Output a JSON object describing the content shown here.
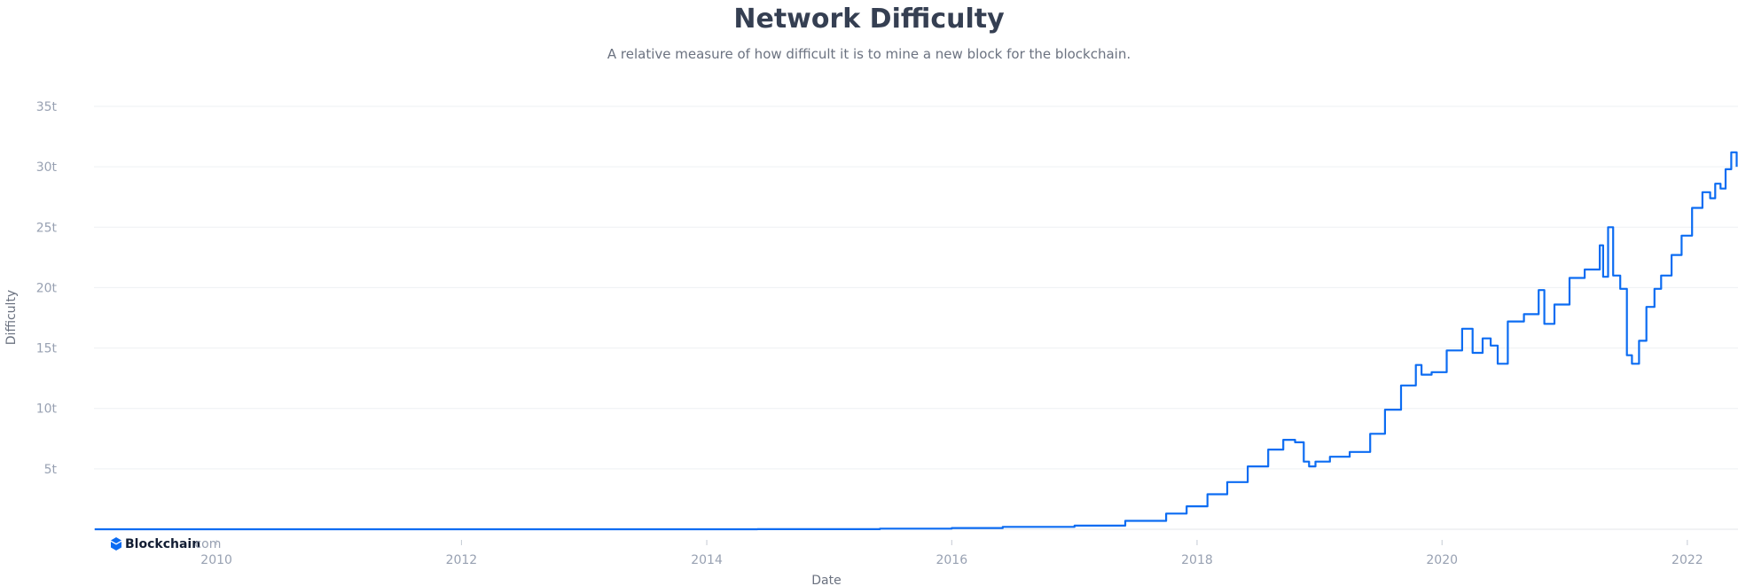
{
  "chart_data": {
    "type": "line",
    "title": "Network Difficulty",
    "subtitle": "A relative measure of how difficult it is to mine a new block for the blockchain.",
    "xlabel": "Date",
    "ylabel": "Difficulty",
    "xlim": [
      "2009-01-01",
      "2022-06-01"
    ],
    "ylim": [
      0,
      35
    ],
    "y_unit": "t",
    "x_ticks": [
      "2010",
      "2012",
      "2014",
      "2016",
      "2018",
      "2020",
      "2022"
    ],
    "y_ticks": [
      "5t",
      "10t",
      "15t",
      "20t",
      "25t",
      "30t",
      "35t"
    ],
    "grid": "horizontal",
    "legend": "none",
    "line_color": "#0c6cf2",
    "watermark": "Blockchain.com",
    "series": [
      {
        "points": [
          [
            "2009-01-03",
            0
          ],
          [
            "2013-01-01",
            0
          ],
          [
            "2014-06-01",
            0.01
          ],
          [
            "2015-06-01",
            0.05
          ],
          [
            "2016-01-01",
            0.1
          ],
          [
            "2016-06-01",
            0.2
          ],
          [
            "2017-01-01",
            0.3
          ],
          [
            "2017-06-01",
            0.7
          ],
          [
            "2017-10-01",
            1.3
          ],
          [
            "2017-12-01",
            1.9
          ],
          [
            "2018-02-01",
            2.9
          ],
          [
            "2018-04-01",
            3.9
          ],
          [
            "2018-06-01",
            5.2
          ],
          [
            "2018-08-01",
            6.6
          ],
          [
            "2018-09-15",
            7.4
          ],
          [
            "2018-10-20",
            7.2
          ],
          [
            "2018-11-15",
            5.6
          ],
          [
            "2018-12-01",
            5.2
          ],
          [
            "2018-12-20",
            5.6
          ],
          [
            "2019-02-01",
            6.0
          ],
          [
            "2019-04-01",
            6.4
          ],
          [
            "2019-06-01",
            7.9
          ],
          [
            "2019-07-15",
            9.9
          ],
          [
            "2019-09-01",
            11.9
          ],
          [
            "2019-10-15",
            13.6
          ],
          [
            "2019-11-01",
            12.8
          ],
          [
            "2019-12-01",
            13.0
          ],
          [
            "2020-01-15",
            14.8
          ],
          [
            "2020-03-01",
            16.6
          ],
          [
            "2020-04-01",
            14.6
          ],
          [
            "2020-05-01",
            15.8
          ],
          [
            "2020-05-25",
            15.2
          ],
          [
            "2020-06-15",
            13.7
          ],
          [
            "2020-07-15",
            17.2
          ],
          [
            "2020-09-01",
            17.8
          ],
          [
            "2020-10-15",
            19.8
          ],
          [
            "2020-11-01",
            17.0
          ],
          [
            "2020-12-01",
            18.6
          ],
          [
            "2021-01-15",
            20.8
          ],
          [
            "2021-03-01",
            21.5
          ],
          [
            "2021-04-15",
            23.5
          ],
          [
            "2021-04-25",
            20.9
          ],
          [
            "2021-05-10",
            25.0
          ],
          [
            "2021-05-25",
            21.0
          ],
          [
            "2021-06-15",
            19.9
          ],
          [
            "2021-07-05",
            14.4
          ],
          [
            "2021-07-20",
            13.7
          ],
          [
            "2021-08-10",
            15.6
          ],
          [
            "2021-09-01",
            18.4
          ],
          [
            "2021-09-25",
            19.9
          ],
          [
            "2021-10-15",
            21.0
          ],
          [
            "2021-11-15",
            22.7
          ],
          [
            "2021-12-15",
            24.3
          ],
          [
            "2022-01-15",
            26.6
          ],
          [
            "2022-02-15",
            27.9
          ],
          [
            "2022-03-10",
            27.4
          ],
          [
            "2022-03-25",
            28.6
          ],
          [
            "2022-04-10",
            28.2
          ],
          [
            "2022-04-25",
            29.8
          ],
          [
            "2022-05-12",
            31.2
          ],
          [
            "2022-05-28",
            30.0
          ]
        ]
      }
    ]
  }
}
